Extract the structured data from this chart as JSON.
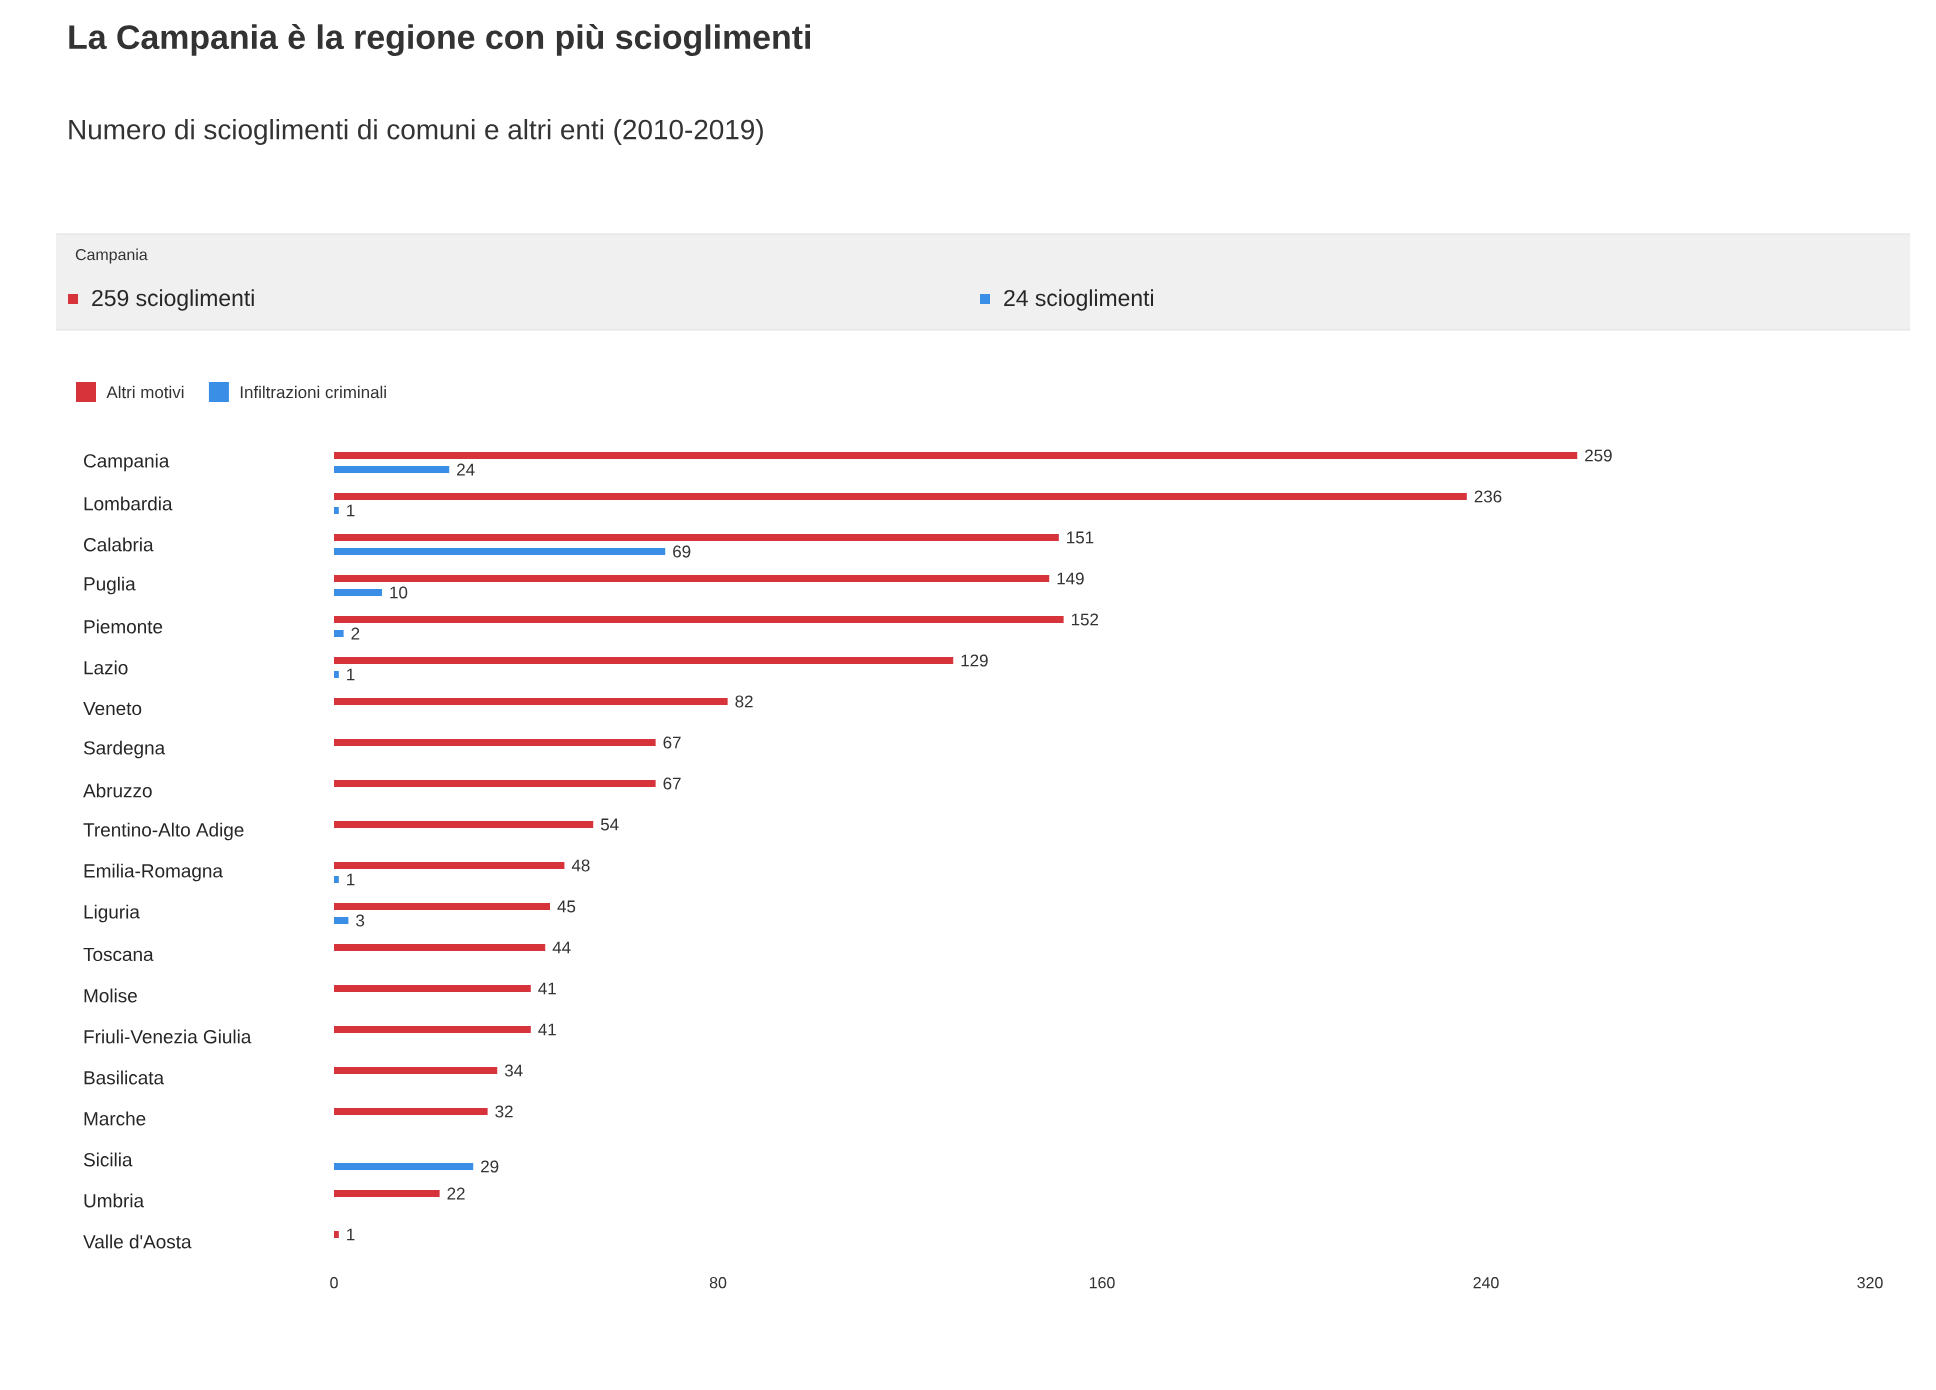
{
  "chart_data": {
    "type": "bar",
    "orientation": "horizontal",
    "title": "La Campania è la regione con più scioglimenti",
    "subtitle": "Numero di scioglimenti di comuni e altri enti (2010-2019)",
    "categories": [
      "Campania",
      "Lombardia",
      "Calabria",
      "Puglia",
      "Piemonte",
      "Lazio",
      "Veneto",
      "Sardegna",
      "Abruzzo",
      "Trentino-Alto Adige",
      "Emilia-Romagna",
      "Liguria",
      "Toscana",
      "Molise",
      "Friuli-Venezia Giulia",
      "Basilicata",
      "Marche",
      "Sicilia",
      "Umbria",
      "Valle d'Aosta"
    ],
    "series": [
      {
        "name": "Altri motivi",
        "color": "#d6333b",
        "values": [
          259,
          236,
          151,
          149,
          152,
          129,
          82,
          67,
          67,
          54,
          48,
          45,
          44,
          41,
          41,
          34,
          32,
          null,
          22,
          1
        ]
      },
      {
        "name": "Infiltrazioni criminali",
        "color": "#3a8ee6",
        "values": [
          24,
          1,
          69,
          10,
          2,
          1,
          null,
          null,
          null,
          null,
          1,
          3,
          null,
          null,
          null,
          null,
          null,
          29,
          null,
          null
        ]
      }
    ],
    "xlim": [
      0,
      320
    ],
    "xticks": [
      0,
      80,
      160,
      240,
      320
    ],
    "data_labels": true,
    "legend": "top left",
    "grid": false,
    "annotations": [
      "Campania",
      "259 scioglimenti",
      "24 scioglimenti"
    ]
  }
}
